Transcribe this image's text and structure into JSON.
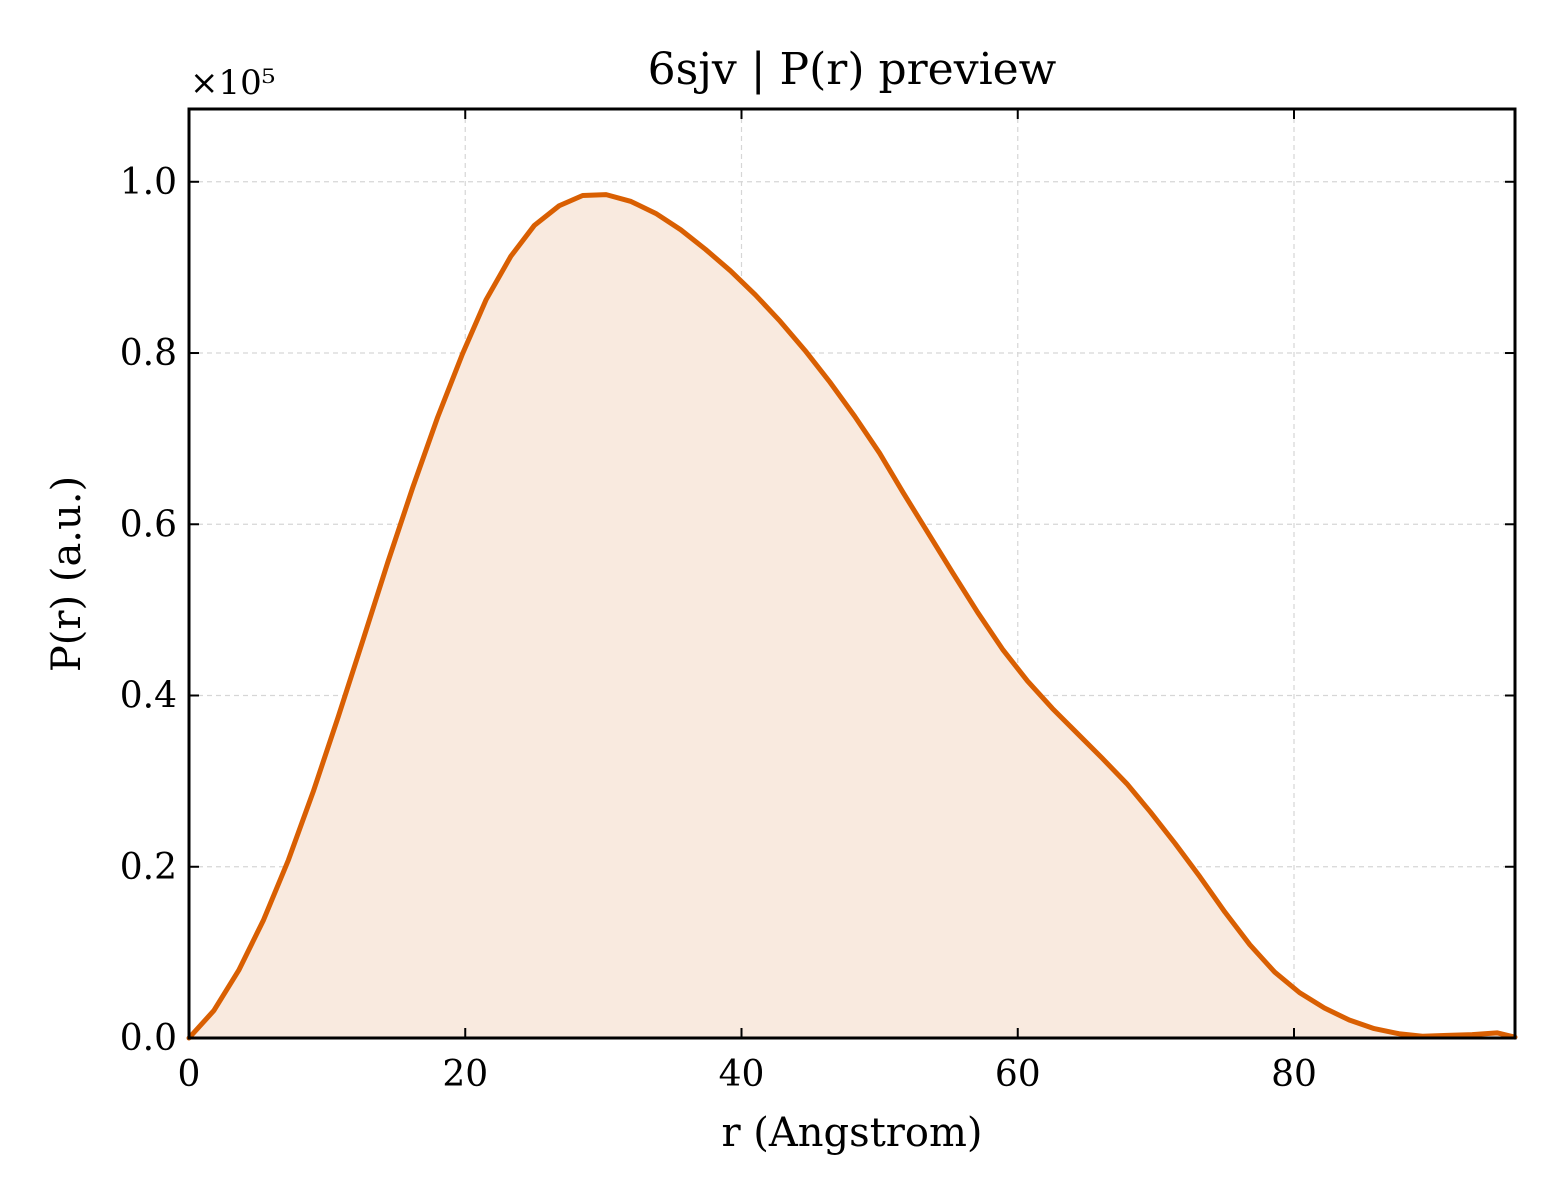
{
  "chart_data": {
    "type": "area",
    "title": "6sjv | P(r) preview",
    "xlabel": "r (Angstrom)",
    "ylabel": "P(r) (a.u.)",
    "y_multiplier": "×10⁵",
    "xlim": [
      0,
      96
    ],
    "ylim": [
      0,
      1.085
    ],
    "xticks": [
      0,
      20,
      40,
      60,
      80
    ],
    "xtick_labels": [
      "0",
      "20",
      "40",
      "60",
      "80"
    ],
    "yticks": [
      0.0,
      0.2,
      0.4,
      0.6,
      0.8,
      1.0
    ],
    "ytick_labels": [
      "0.0",
      "0.2",
      "0.4",
      "0.6",
      "0.8",
      "1.0"
    ],
    "grid": true,
    "line_color": "#d95f02",
    "fill_color": "#f9eadf",
    "series": [
      {
        "x": [
          0,
          1.8,
          3.6,
          5.4,
          7.2,
          9.0,
          10.8,
          12.6,
          14.4,
          16.2,
          18.0,
          19.8,
          21.5,
          23.3,
          25.0,
          26.8,
          28.5,
          30.2,
          32.0,
          33.8,
          35.6,
          37.4,
          39.2,
          41.0,
          42.8,
          44.6,
          46.4,
          48.2,
          50.0,
          51.7,
          53.5,
          55.3,
          57.1,
          58.9,
          60.7,
          62.5,
          64.3,
          66.1,
          67.9,
          69.6,
          71.4,
          73.2,
          75.0,
          76.8,
          78.6,
          80.4,
          82.2,
          84.0,
          85.8,
          87.6,
          89.3,
          91.1,
          92.9,
          94.7,
          96.0
        ],
        "y": [
          0.0,
          0.032,
          0.079,
          0.138,
          0.208,
          0.288,
          0.375,
          0.465,
          0.556,
          0.643,
          0.725,
          0.799,
          0.862,
          0.913,
          0.949,
          0.972,
          0.984,
          0.985,
          0.977,
          0.963,
          0.944,
          0.921,
          0.896,
          0.868,
          0.837,
          0.803,
          0.766,
          0.726,
          0.683,
          0.637,
          0.59,
          0.543,
          0.497,
          0.454,
          0.417,
          0.385,
          0.356,
          0.327,
          0.297,
          0.264,
          0.227,
          0.188,
          0.147,
          0.109,
          0.077,
          0.053,
          0.035,
          0.021,
          0.011,
          0.005,
          0.002,
          0.003,
          0.004,
          0.006,
          0.001
        ]
      }
    ]
  }
}
